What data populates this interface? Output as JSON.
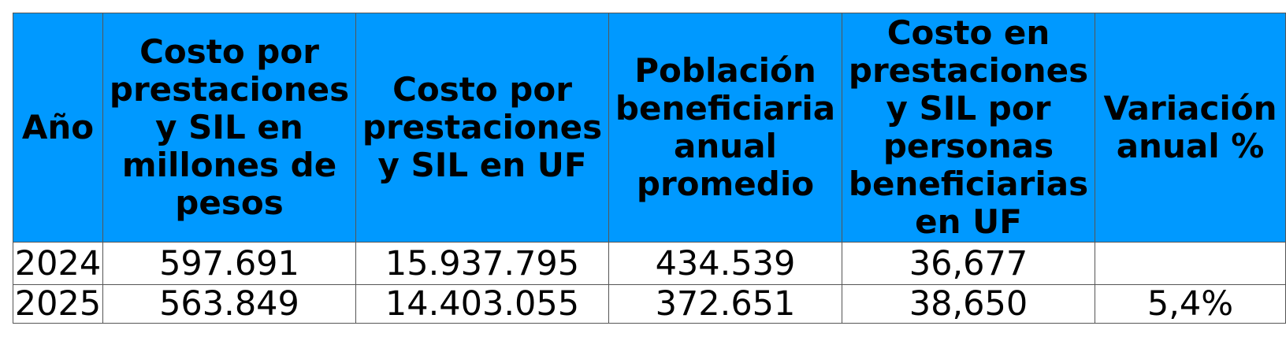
{
  "table": {
    "headers": [
      "Año",
      "Costo por prestaciones y SIL en millones de pesos",
      "Costo por prestaciones y SIL en UF",
      "Población beneficiaria anual promedio",
      "Costo en prestaciones y SIL por personas beneficiarias en UF",
      "Variación anual %"
    ],
    "rows": [
      [
        "2024",
        "597.691",
        "15.937.795",
        "434.539",
        "36,677",
        ""
      ],
      [
        "2025",
        "563.849",
        "14.403.055",
        "372.651",
        "38,650",
        "5,4%"
      ]
    ]
  },
  "colors": {
    "header_background": "#0099ff",
    "header_text": "#000000",
    "cell_background": "#ffffff",
    "border": "#555555"
  }
}
